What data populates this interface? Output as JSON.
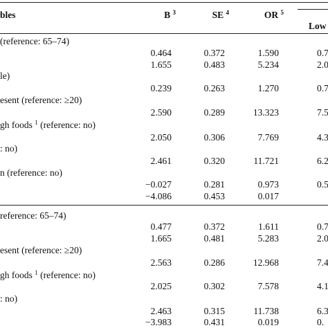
{
  "header": {
    "variables": "bles",
    "b": "B",
    "b_note": "3",
    "se": "SE",
    "se_note": "4",
    "or": "OR",
    "or_note": "5",
    "low": "Low"
  },
  "rows": [
    {
      "label": "(reference: 65–74)"
    },
    {
      "b": "0.464",
      "se": "0.372",
      "or": "1.590",
      "low": "0.7"
    },
    {
      "b": "1.655",
      "se": "0.483",
      "or": "5.234",
      "low": "2.0"
    },
    {
      "label": "le)"
    },
    {
      "b": "0.239",
      "se": "0.263",
      "or": "1.270",
      "low": "0.7"
    },
    {
      "label": "esent (reference: ≥20)"
    },
    {
      "b": "2.590",
      "se": "0.289",
      "or": "13.323",
      "low": "7.5"
    },
    {
      "label": "gh foods",
      "label_note": "1",
      "label_rest": "(reference: no)"
    },
    {
      "b": "2.050",
      "se": "0.306",
      "or": "7.769",
      "low": "4.3"
    },
    {
      "label": ": no)"
    },
    {
      "b": "2.461",
      "se": "0.320",
      "or": "11.721",
      "low": "6.2"
    },
    {
      "label": "n (reference: no)"
    },
    {
      "b": "−0.027",
      "se": "0.281",
      "or": "0.973",
      "low": "0.5"
    },
    {
      "b": "−4.086",
      "se": "0.453",
      "or": "0.017"
    },
    {
      "label": "reference: 65–74)"
    },
    {
      "b": "0.477",
      "se": "0.372",
      "or": "1.611",
      "low": "0.7"
    },
    {
      "b": "1.665",
      "se": "0.481",
      "or": "5.283",
      "low": "2.0"
    },
    {
      "label": "esent (reference: ≥20)"
    },
    {
      "b": "2.563",
      "se": "0.286",
      "or": "12.968",
      "low": "7.4"
    },
    {
      "label": "gh foods",
      "label_note": "1",
      "label_rest": "(reference: no)"
    },
    {
      "b": "2.025",
      "se": "0.302",
      "or": "7.578",
      "low": "4.1"
    },
    {
      "label": ": no)"
    },
    {
      "b": "2.463",
      "se": "0.315",
      "or": "11.738",
      "low": "6.3"
    },
    {
      "b": "−3.983",
      "se": "0.431",
      "or": "0.019",
      "low": "0."
    }
  ]
}
